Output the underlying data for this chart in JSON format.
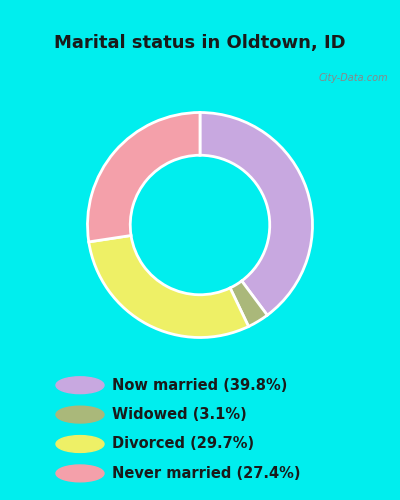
{
  "title": "Marital status in Oldtown, ID",
  "title_fontsize": 13,
  "title_color": "#1a1a1a",
  "bg_cyan": "#00eeee",
  "chart_bg_color": "#d8efe0",
  "categories": [
    "Now married (39.8%)",
    "Widowed (3.1%)",
    "Divorced (29.7%)",
    "Never married (27.4%)"
  ],
  "values": [
    39.8,
    3.1,
    29.7,
    27.4
  ],
  "colors": [
    "#c8a8e0",
    "#aab87a",
    "#eef066",
    "#f4a0aa"
  ],
  "legend_colors": [
    "#c8a8e0",
    "#aab87a",
    "#eef066",
    "#f4a0aa"
  ],
  "donut_width": 0.38,
  "startangle": 90
}
